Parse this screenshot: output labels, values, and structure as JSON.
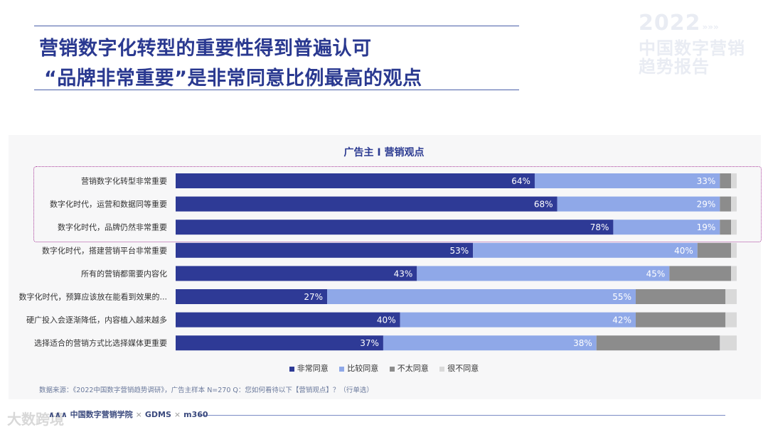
{
  "header": {
    "title_line1": "营销数字化转型的重要性得到普遍认可",
    "title_line2": "“品牌非常重要”是非常同意比例最高的观点"
  },
  "brand": {
    "year": "2022",
    "arrows": "»»»",
    "line2": "中国数字营销",
    "line3": "趋势报告"
  },
  "chart_data": {
    "type": "bar",
    "orientation": "horizontal",
    "stacked": true,
    "title": "广告主 I 营销观点",
    "categories": [
      "营销数字化转型非常重要",
      "数字化时代，运营和数据同等重要",
      "数字化时代，品牌仍然非常重要",
      "数字化时代，搭建营销平台非常重要",
      "所有的营销都需要内容化",
      "数字化时代，预算应该放在能看到效果的...",
      "硬广投入会逐渐降低，内容植入越来越多",
      "选择适合的营销方式比选择媒体更重要"
    ],
    "series": [
      {
        "name": "非常同意",
        "color": "#2e3a96",
        "values": [
          64,
          68,
          78,
          53,
          43,
          27,
          40,
          37
        ]
      },
      {
        "name": "比较同意",
        "color": "#8fa8e8",
        "values": [
          33,
          29,
          19,
          40,
          45,
          55,
          42,
          38
        ]
      },
      {
        "name": "不太同意",
        "color": "#8c8c8c",
        "values": [
          2,
          2,
          2,
          6,
          11,
          16,
          16,
          22
        ]
      },
      {
        "name": "很不同意",
        "color": "#d9d9d9",
        "values": [
          1,
          1,
          1,
          1,
          1,
          2,
          2,
          3
        ]
      }
    ],
    "labeled_series": [
      0,
      1
    ],
    "label_format": "{v}%",
    "xlim": [
      0,
      100
    ],
    "grid": false,
    "legend_position": "bottom"
  },
  "source": "数据来源：《2022中国数字营销趋势调研》，广告主样本 N=270    Q：您如何看待以下【营销观点】？（行单选）",
  "footer": {
    "logo1": "∧∧∧ 中国数字营销学院",
    "sep": "×",
    "logo2": "GDMS",
    "logo3": "m360",
    "watermark": "大数跨境"
  }
}
